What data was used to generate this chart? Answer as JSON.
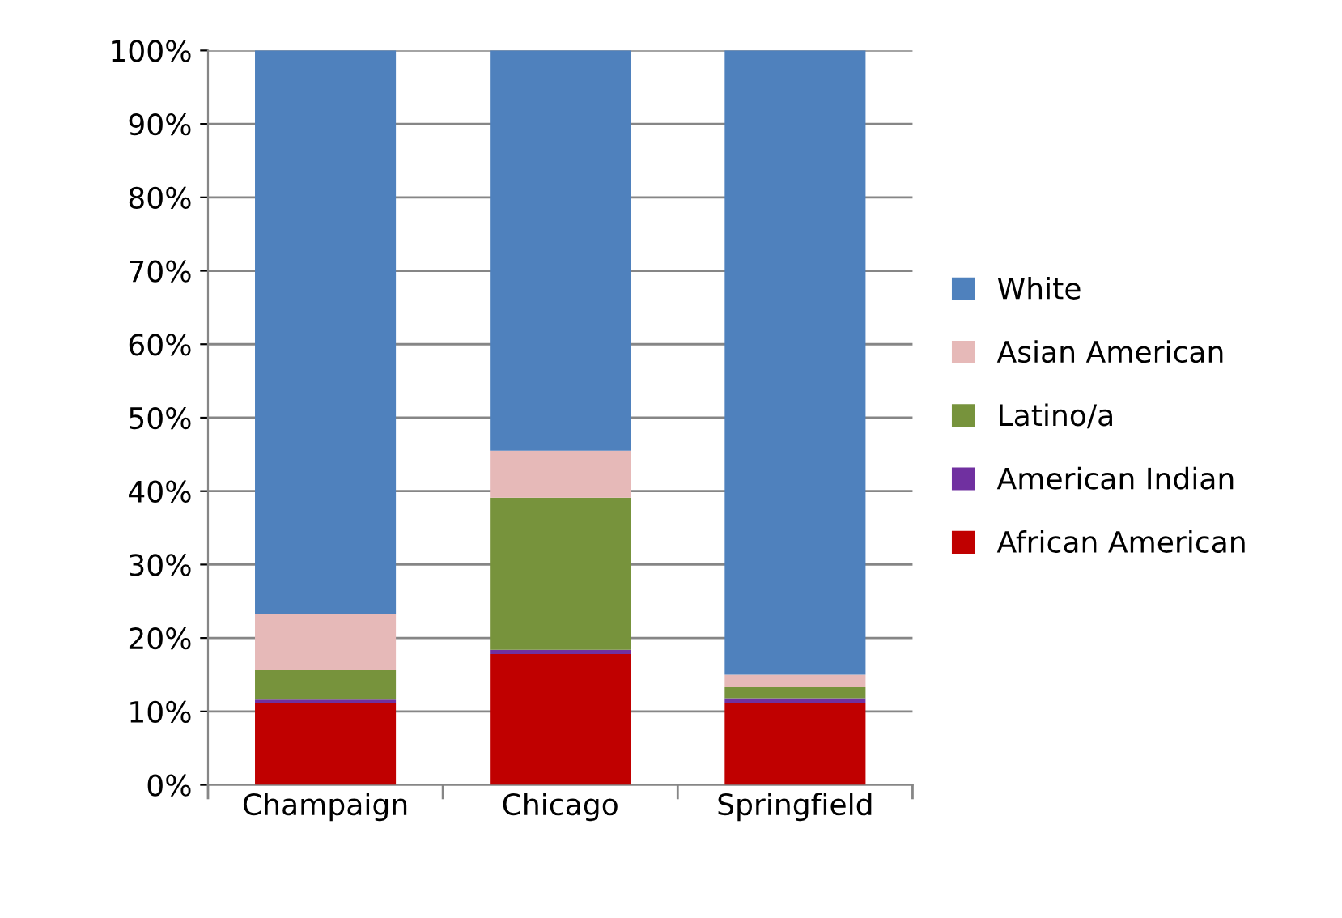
{
  "chart_data": {
    "type": "bar",
    "stacked": true,
    "categories": [
      "Champaign",
      "Chicago",
      "Springfield"
    ],
    "series": [
      {
        "name": "African American",
        "color": "#c00000",
        "values": [
          11.1,
          17.8,
          11.1
        ]
      },
      {
        "name": "American Indian",
        "color": "#7030a0",
        "values": [
          0.5,
          0.6,
          0.7
        ]
      },
      {
        "name": "Latino/a",
        "color": "#77933c",
        "values": [
          4.0,
          20.7,
          1.5
        ]
      },
      {
        "name": "Asian American",
        "color": "#e6b9b8",
        "values": [
          7.6,
          6.4,
          1.7
        ]
      },
      {
        "name": "White",
        "color": "#4f81bd",
        "values": [
          76.8,
          54.5,
          85.0
        ]
      }
    ],
    "ylim": [
      0,
      100
    ],
    "yticks": [
      {
        "value": 0,
        "label": "0%"
      },
      {
        "value": 10,
        "label": "10%"
      },
      {
        "value": 20,
        "label": "20%"
      },
      {
        "value": 30,
        "label": "30%"
      },
      {
        "value": 40,
        "label": "40%"
      },
      {
        "value": 50,
        "label": "50%"
      },
      {
        "value": 60,
        "label": "60%"
      },
      {
        "value": 70,
        "label": "70%"
      },
      {
        "value": 80,
        "label": "80%"
      },
      {
        "value": 90,
        "label": "90%"
      },
      {
        "value": 100,
        "label": "100%"
      }
    ],
    "grid": "y",
    "legend": "right"
  }
}
